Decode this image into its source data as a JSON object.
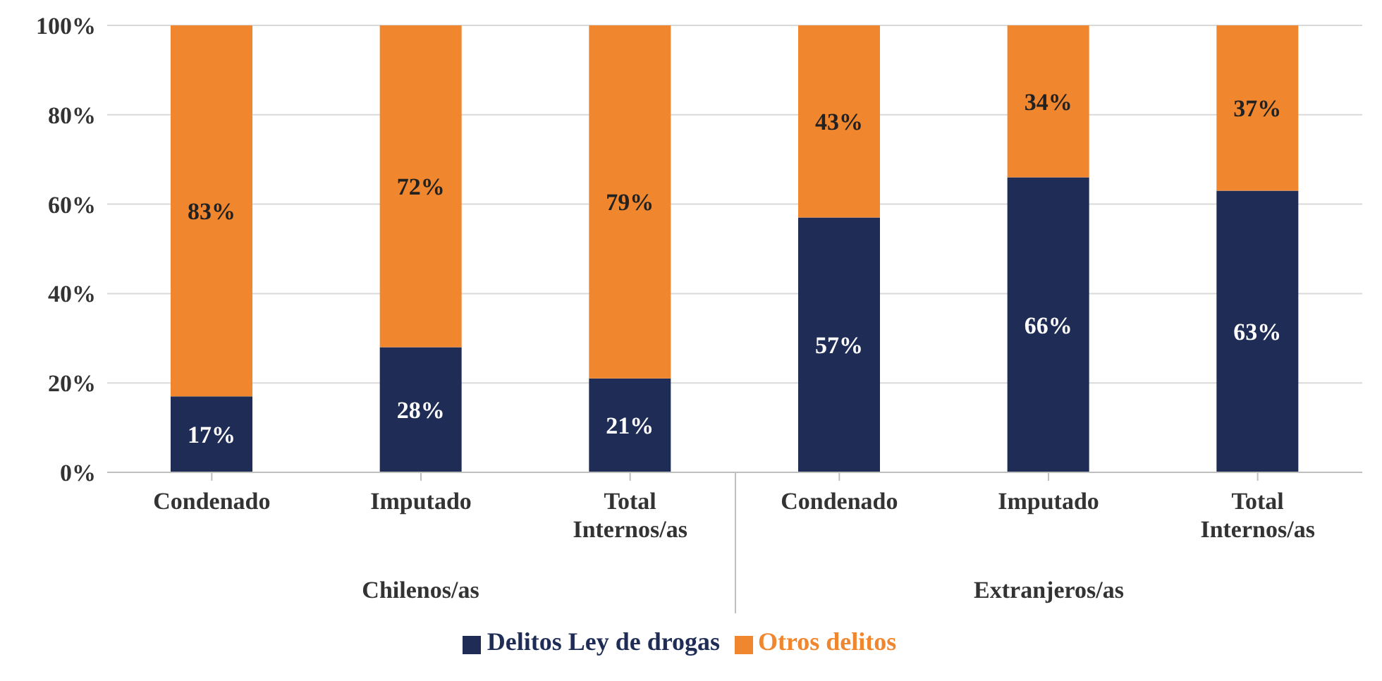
{
  "chart_data": {
    "type": "bar",
    "stacked": true,
    "categories": [
      "Condenado",
      "Imputado",
      "Total Internos/as",
      "Condenado",
      "Imputado",
      "Total Internos/as"
    ],
    "series": [
      {
        "name": "Delitos Ley de drogas",
        "color": "#1f2d56",
        "values": [
          17,
          28,
          21,
          57,
          66,
          63
        ],
        "value_labels": [
          "17%",
          "28%",
          "21%",
          "57%",
          "66%",
          "63%"
        ]
      },
      {
        "name": "Otros delitos",
        "color": "#f0862e",
        "values": [
          83,
          72,
          79,
          43,
          34,
          37
        ],
        "value_labels": [
          "83%",
          "72%",
          "79%",
          "43%",
          "34%",
          "37%"
        ]
      }
    ],
    "ylim": [
      0,
      100
    ],
    "yticks": [
      {
        "value": 0,
        "label": "0%"
      },
      {
        "value": 20,
        "label": "20%"
      },
      {
        "value": 40,
        "label": "40%"
      },
      {
        "value": 60,
        "label": "60%"
      },
      {
        "value": 80,
        "label": "80%"
      },
      {
        "value": 100,
        "label": "100%"
      }
    ],
    "annotations": [
      "Chilenos/as",
      "Extranjeros/as"
    ],
    "grid": "y",
    "legend": "bottom"
  }
}
